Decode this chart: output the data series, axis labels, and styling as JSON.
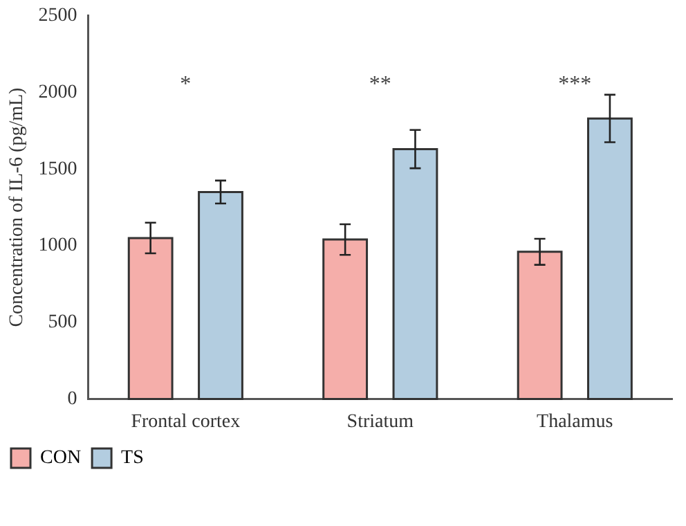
{
  "chart_data": {
    "type": "bar",
    "ylabel": "Concentration of IL-6 (pg/mL)",
    "categories": [
      "Frontal cortex",
      "Striatum",
      "Thalamus"
    ],
    "series": [
      {
        "name": "CON",
        "color": "#f5aeaa",
        "values": [
          1050,
          1040,
          960
        ],
        "errors": [
          100,
          100,
          85
        ]
      },
      {
        "name": "TS",
        "color": "#b3cde0",
        "values": [
          1350,
          1630,
          1830
        ],
        "errors": [
          75,
          125,
          155
        ]
      }
    ],
    "ylim": [
      0,
      2500
    ],
    "yticks": [
      0,
      500,
      1000,
      1500,
      2000,
      2500
    ],
    "grid": false,
    "legend": "bottom left",
    "annotations": [
      "*",
      "**",
      "***"
    ]
  }
}
